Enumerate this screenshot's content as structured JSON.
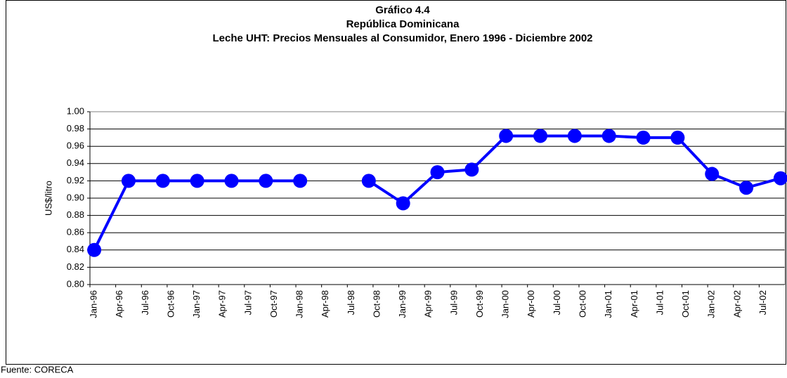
{
  "chart_data": {
    "type": "line",
    "title": [
      "Gráfico 4.4",
      "República Dominicana",
      "Leche UHT: Precios Mensuales al Consumidor, Enero 1996 - Diciembre 2002"
    ],
    "ylabel": "US$/litro",
    "source": "Fuente: CORECA",
    "categories": [
      "Jan-96",
      null,
      null,
      "Apr-96",
      null,
      null,
      "Jul-96",
      null,
      null,
      "Oct-96",
      null,
      null,
      "Jan-97",
      null,
      null,
      "Apr-97",
      null,
      null,
      "Jul-97",
      null,
      null,
      "Oct-97",
      null,
      null,
      "Jan-98",
      null,
      null,
      "Apr-98",
      null,
      null,
      "Jul-98",
      null,
      null,
      "Oct-98",
      null,
      null,
      "Jan-99",
      null,
      null,
      "Apr-99",
      null,
      null,
      "Jul-99",
      null,
      null,
      "Oct-99",
      null,
      null,
      "Jan-00",
      null,
      null,
      "Apr-00",
      null,
      null,
      "Jul-00",
      null,
      null,
      "Oct-00",
      null,
      null,
      "Jan-01",
      null,
      null,
      "Apr-01",
      null,
      null,
      "Jul-01",
      null,
      null,
      "Oct-01",
      null,
      null,
      "Jan-02",
      null,
      null,
      "Apr-02",
      null,
      null,
      "Jul-02",
      null,
      null
    ],
    "series": [
      {
        "color": "#0000ff",
        "values": [
          0.84,
          null,
          null,
          null,
          0.92,
          null,
          null,
          null,
          0.92,
          null,
          null,
          null,
          0.92,
          null,
          null,
          null,
          0.92,
          null,
          null,
          null,
          0.92,
          null,
          null,
          null,
          0.92,
          null,
          null,
          null,
          null,
          null,
          null,
          null,
          0.92,
          null,
          null,
          null,
          0.894,
          null,
          null,
          null,
          0.93,
          null,
          null,
          null,
          0.933,
          null,
          null,
          null,
          0.972,
          null,
          null,
          null,
          0.972,
          null,
          null,
          null,
          0.972,
          null,
          null,
          null,
          0.972,
          null,
          null,
          null,
          0.97,
          null,
          null,
          null,
          0.97,
          null,
          null,
          null,
          0.928,
          null,
          null,
          null,
          0.912,
          null,
          null,
          null,
          0.923
        ]
      }
    ],
    "ylim": [
      0.8,
      1.0
    ],
    "yticks": [
      {
        "value": 0.8,
        "label": "0.80"
      },
      {
        "value": 0.82,
        "label": "0.82"
      },
      {
        "value": 0.84,
        "label": "0.84"
      },
      {
        "value": 0.86,
        "label": "0.86"
      },
      {
        "value": 0.88,
        "label": "0.88"
      },
      {
        "value": 0.9,
        "label": "0.90"
      },
      {
        "value": 0.92,
        "label": "0.92"
      },
      {
        "value": 0.94,
        "label": "0.94"
      },
      {
        "value": 0.96,
        "label": "0.96"
      },
      {
        "value": 0.98,
        "label": "0.98"
      },
      {
        "value": 1.0,
        "label": "1.00"
      }
    ],
    "grid": true
  }
}
